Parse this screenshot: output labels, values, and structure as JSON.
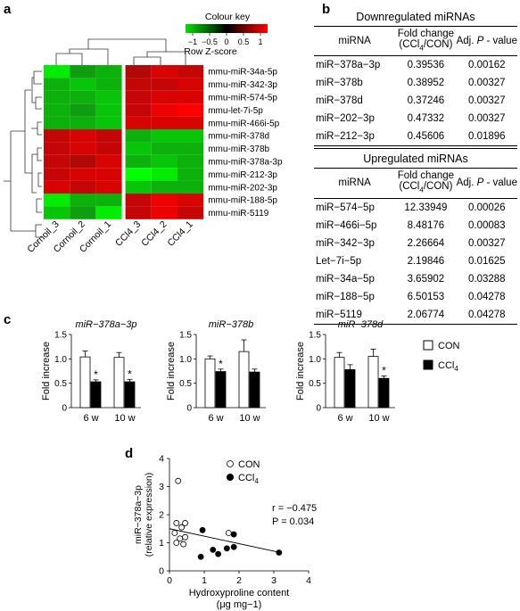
{
  "panels": {
    "a": "a",
    "b": "b",
    "c": "c",
    "d": "d"
  },
  "heatmap": {
    "colour_key_title": "Colour key",
    "key_ticks": [
      "−1",
      "−0.5",
      "0",
      "0.5",
      "1"
    ],
    "key_label": "Row Z-score",
    "rows": [
      "mmu-miR-34a-5p",
      "mmu-miR-342-3p",
      "mmu-miR-574-5p",
      "mmu-let-7i-5p",
      "mmu-miR-466i-5p",
      "mmu-miR-378d",
      "mmu-miR-378b",
      "mmu-miR-378a-3p",
      "mmu-miR-212-3p",
      "mmu-miR-202-3p",
      "mmu-miR-188-5p",
      "mmu-miR-5119"
    ],
    "cols": [
      "Cornoil_3",
      "Cornoil_2",
      "Cornoil_1",
      "CCl4_3",
      "CCl4_2",
      "CCl4_1"
    ],
    "zscores": [
      [
        -0.9,
        -0.5,
        -0.6,
        0.6,
        0.8,
        0.7
      ],
      [
        -0.6,
        -0.7,
        -0.6,
        0.7,
        0.7,
        0.8
      ],
      [
        -0.6,
        -0.6,
        -0.7,
        0.7,
        0.8,
        0.8
      ],
      [
        -0.6,
        -0.5,
        -0.7,
        0.7,
        0.9,
        1.0
      ],
      [
        -0.6,
        -0.6,
        -0.7,
        0.8,
        0.8,
        0.8
      ],
      [
        0.7,
        0.8,
        0.7,
        -0.6,
        -0.7,
        -0.7
      ],
      [
        0.7,
        0.8,
        0.7,
        -0.7,
        -0.6,
        -0.6
      ],
      [
        0.7,
        0.6,
        0.8,
        -0.6,
        -0.7,
        -0.6
      ],
      [
        0.7,
        0.8,
        0.8,
        -1.0,
        -0.9,
        -0.6
      ],
      [
        0.8,
        0.7,
        0.8,
        -0.7,
        -0.6,
        -0.6
      ],
      [
        -0.9,
        -0.6,
        -0.6,
        0.7,
        0.9,
        0.8
      ],
      [
        -0.7,
        -0.5,
        -0.9,
        0.7,
        0.9,
        0.7
      ]
    ]
  },
  "table": {
    "down_title": "Downregulated miRNAs",
    "up_title": "Upregulated miRNAs",
    "headers": [
      "miRNA",
      "Fold change",
      "(CCl",
      "4",
      "/CON)",
      "Adj. ",
      "P",
      " - value"
    ],
    "down_rows": [
      [
        "miR−378a−3p",
        "0.39536",
        "0.00162"
      ],
      [
        "miR−378b",
        "0.38952",
        "0.00327"
      ],
      [
        "miR−378d",
        "0.37246",
        "0.00327"
      ],
      [
        "miR−202−3p",
        "0.47332",
        "0.00327"
      ],
      [
        "miR−212−3p",
        "0.45606",
        "0.01896"
      ]
    ],
    "up_rows": [
      [
        "miR−574−5p",
        "12.33949",
        "0.00026"
      ],
      [
        "miR−466i−5p",
        "8.48176",
        "0.00083"
      ],
      [
        "miR−342−3p",
        "2.26664",
        "0.00327"
      ],
      [
        "Let−7i−5p",
        "2.19846",
        "0.01625"
      ],
      [
        "miR−34a−5p",
        "3.65902",
        "0.03288"
      ],
      [
        "miR−188−5p",
        "6.50153",
        "0.04278"
      ],
      [
        "miR−5119",
        "2.06774",
        "0.04278"
      ]
    ]
  },
  "chart_data": [
    {
      "type": "bar",
      "title": "miR−378a−3p",
      "ylabel": "Fold increase",
      "categories": [
        "6 w",
        "10 w"
      ],
      "ylim": [
        0,
        1.5
      ],
      "yticks": [
        "0",
        "0.5",
        "1.0",
        "1.5"
      ],
      "series": [
        {
          "name": "CON",
          "values": [
            1.04,
            1.03
          ],
          "errors": [
            0.12,
            0.1
          ]
        },
        {
          "name": "CCl4",
          "values": [
            0.53,
            0.53
          ],
          "errors": [
            0.04,
            0.05
          ]
        }
      ],
      "significance": [
        "*",
        "*"
      ]
    },
    {
      "type": "bar",
      "title": "miR−378b",
      "ylabel": "Fold increase",
      "categories": [
        "6 w",
        "10 w"
      ],
      "ylim": [
        0,
        1.5
      ],
      "yticks": [
        "0",
        "0.5",
        "1.0",
        "1.5"
      ],
      "series": [
        {
          "name": "CON",
          "values": [
            1.0,
            1.15
          ],
          "errors": [
            0.06,
            0.24
          ]
        },
        {
          "name": "CCl4",
          "values": [
            0.74,
            0.73
          ],
          "errors": [
            0.05,
            0.06
          ]
        }
      ],
      "significance": [
        "*",
        ""
      ]
    },
    {
      "type": "bar",
      "title": "miR−378d",
      "ylabel": "Fold increase",
      "categories": [
        "6 w",
        "10 w"
      ],
      "ylim": [
        0,
        1.5
      ],
      "yticks": [
        "0",
        "0.5",
        "1.0",
        "1.5"
      ],
      "series": [
        {
          "name": "CON",
          "values": [
            1.03,
            1.05
          ],
          "errors": [
            0.1,
            0.15
          ]
        },
        {
          "name": "CCl4",
          "values": [
            0.78,
            0.6
          ],
          "errors": [
            0.1,
            0.05
          ]
        }
      ],
      "significance": [
        "",
        "*"
      ]
    },
    {
      "type": "scatter",
      "xlabel": "Hydroxyproline content",
      "xlabel_unit": "(μg mg−1)",
      "ylabel": "miR−378a−3p",
      "ylabel2": "(relative expression)",
      "xlim": [
        0,
        4
      ],
      "ylim": [
        0,
        4
      ],
      "xticks": [
        "0",
        "1",
        "2",
        "3",
        "4"
      ],
      "yticks": [
        "0",
        "1",
        "2",
        "3",
        "4"
      ],
      "series": [
        {
          "name": "CON",
          "points": [
            [
              0.25,
              3.2
            ],
            [
              0.2,
              1.7
            ],
            [
              0.45,
              1.7
            ],
            [
              0.35,
              1.55
            ],
            [
              0.15,
              1.35
            ],
            [
              0.45,
              1.2
            ],
            [
              0.3,
              1.15
            ],
            [
              0.2,
              1.0
            ],
            [
              0.4,
              0.95
            ],
            [
              1.7,
              1.35
            ]
          ]
        },
        {
          "name": "CCl4",
          "points": [
            [
              0.95,
              1.45
            ],
            [
              1.85,
              1.3
            ],
            [
              1.25,
              0.75
            ],
            [
              1.85,
              0.85
            ],
            [
              1.65,
              0.8
            ],
            [
              0.9,
              0.5
            ],
            [
              1.4,
              0.6
            ],
            [
              3.15,
              0.65
            ]
          ]
        }
      ],
      "fit_line": {
        "x": [
          0.0,
          3.2
        ],
        "y": [
          1.5,
          0.65
        ]
      },
      "annotation_r": "r = −0.475",
      "annotation_p": "P = 0.034"
    }
  ],
  "legend_c": {
    "con": "CON",
    "ccl": "CCl",
    "ccl_sub": "4"
  },
  "legend_d": {
    "con": "CON",
    "ccl": "CCl",
    "ccl_sub": "4"
  }
}
